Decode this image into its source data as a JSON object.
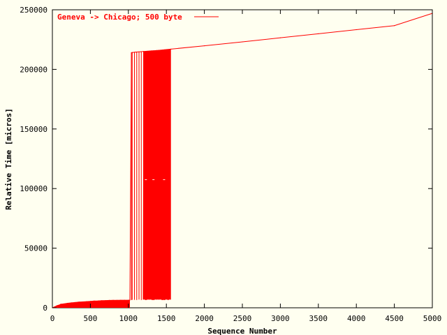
{
  "chart_data": {
    "type": "line",
    "xlabel": "Sequence Number",
    "ylabel": "Relative Time [micros]",
    "xlim": [
      0,
      5000
    ],
    "ylim": [
      0,
      250000
    ],
    "x_ticks": [
      "0",
      "500",
      "1000",
      "1500",
      "2000",
      "2500",
      "3000",
      "3500",
      "4000",
      "4500",
      "5000"
    ],
    "y_ticks": [
      "0",
      "50000",
      "100000",
      "150000",
      "200000",
      "250000"
    ],
    "grid": false,
    "legend_position": "top-left",
    "series": [
      {
        "name": "Geneva -> Chicago; 500 byte",
        "color": "#ff0000",
        "points": [
          [
            0,
            0
          ],
          [
            30,
            800
          ],
          [
            60,
            1800
          ],
          [
            100,
            2600
          ],
          [
            110,
            3000
          ],
          [
            150,
            3300
          ],
          [
            200,
            3800
          ],
          [
            250,
            4200
          ],
          [
            300,
            4500
          ],
          [
            350,
            4800
          ],
          [
            400,
            5000
          ],
          [
            450,
            5200
          ],
          [
            500,
            5400
          ],
          [
            550,
            5700
          ],
          [
            600,
            5800
          ],
          [
            650,
            6000
          ],
          [
            700,
            6100
          ],
          [
            750,
            6200
          ],
          [
            800,
            6300
          ],
          [
            850,
            6300
          ],
          [
            900,
            6400
          ],
          [
            950,
            6400
          ],
          [
            1000,
            6400
          ],
          [
            1020,
            6500
          ],
          [
            1040,
            214000
          ],
          [
            1100,
            214500
          ],
          [
            1200,
            215000
          ],
          [
            1300,
            215500
          ],
          [
            1400,
            216000
          ],
          [
            1500,
            216600
          ],
          [
            1560,
            217000
          ],
          [
            2000,
            219800
          ],
          [
            2500,
            223100
          ],
          [
            3000,
            226500
          ],
          [
            3500,
            229900
          ],
          [
            4000,
            233300
          ],
          [
            4500,
            236700
          ],
          [
            5000,
            247000
          ]
        ],
        "drop_marks_x": [
          1050,
          1080,
          1110,
          1140,
          1170,
          1200,
          1225,
          1250,
          1275,
          1300,
          1325,
          1350,
          1375,
          1400,
          1425,
          1450,
          1475,
          1500,
          1525,
          1545
        ],
        "drop_mark_values": [
          [
            1065,
            6600
          ],
          [
            1145,
            6600
          ],
          [
            1205,
            6600
          ],
          [
            1230,
            107500
          ],
          [
            1260,
            6600
          ],
          [
            1290,
            6600
          ],
          [
            1330,
            107500
          ],
          [
            1360,
            6600
          ],
          [
            1390,
            6600
          ],
          [
            1420,
            6600
          ],
          [
            1470,
            107500
          ],
          [
            1500,
            6600
          ],
          [
            1545,
            6600
          ]
        ]
      }
    ]
  }
}
